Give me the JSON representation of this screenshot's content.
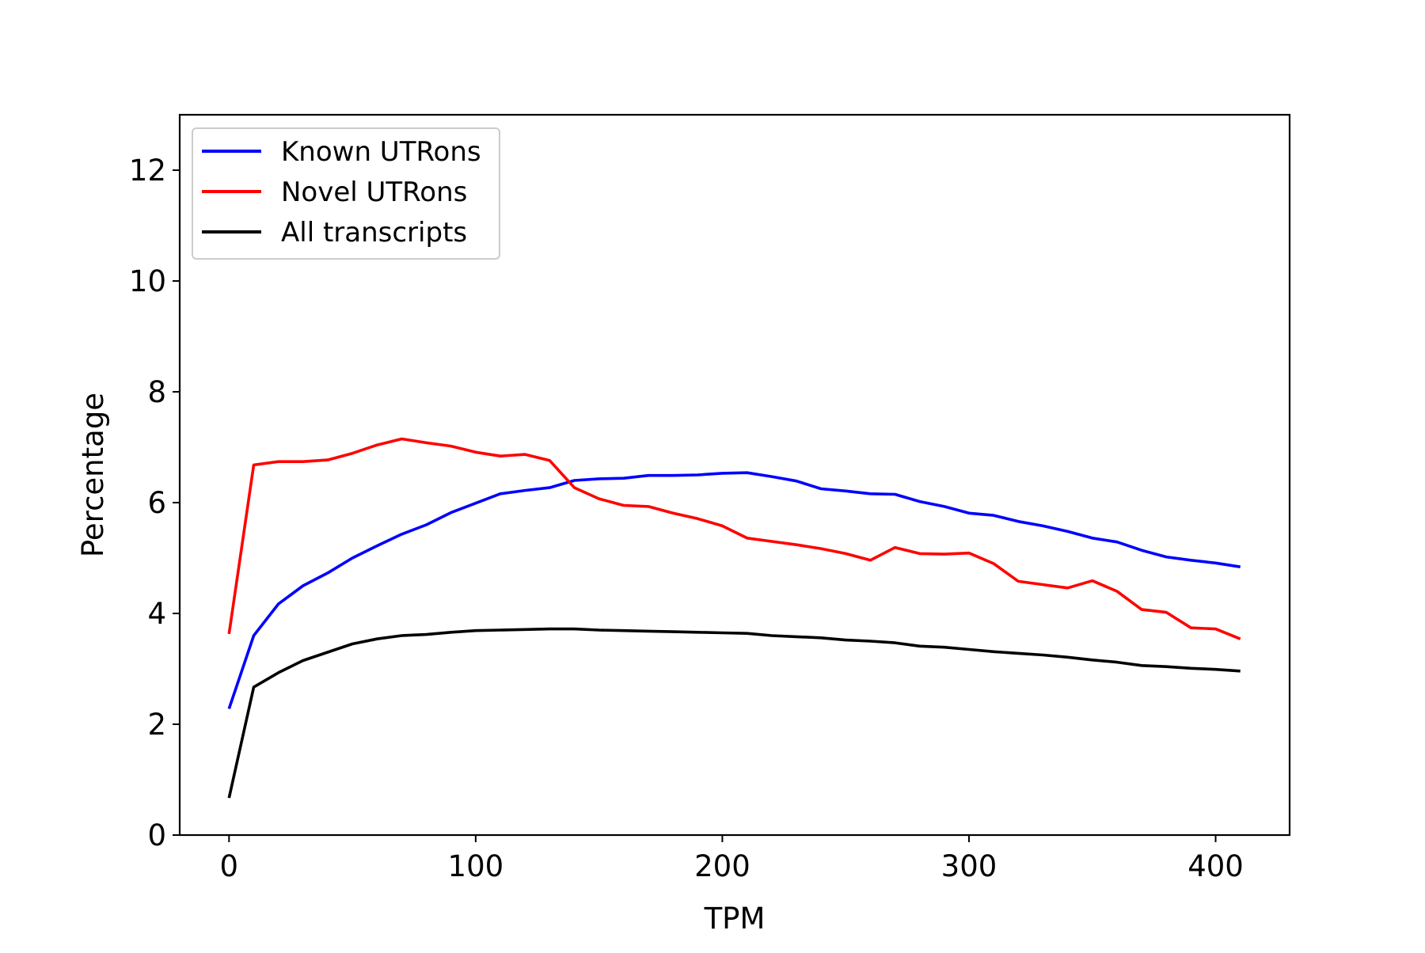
{
  "chart_data": {
    "type": "line",
    "title": "",
    "xlabel": "TPM",
    "ylabel": "Percentage",
    "xlim": [
      -20,
      430
    ],
    "ylim": [
      0,
      13
    ],
    "xticks": [
      0,
      100,
      200,
      300,
      400
    ],
    "yticks": [
      0,
      2,
      4,
      6,
      8,
      10,
      12
    ],
    "xtick_labels": [
      "0",
      "100",
      "200",
      "300",
      "400"
    ],
    "ytick_labels": [
      "0",
      "2",
      "4",
      "6",
      "8",
      "10",
      "12"
    ],
    "grid": false,
    "legend_position": "top-left",
    "x": [
      0,
      10,
      20,
      30,
      40,
      50,
      60,
      70,
      80,
      90,
      100,
      110,
      120,
      130,
      140,
      150,
      160,
      170,
      180,
      190,
      200,
      210,
      220,
      230,
      240,
      250,
      260,
      270,
      280,
      290,
      300,
      310,
      320,
      330,
      340,
      350,
      360,
      370,
      380,
      390,
      400,
      410
    ],
    "series": [
      {
        "name": "Known UTRons",
        "color": "#0000ff",
        "values": [
          2.28,
          3.6,
          4.17,
          4.5,
          4.73,
          5.0,
          5.22,
          5.43,
          5.6,
          5.82,
          5.99,
          6.16,
          6.22,
          6.27,
          6.4,
          6.43,
          6.44,
          6.49,
          6.49,
          6.5,
          6.53,
          6.54,
          6.47,
          6.39,
          6.25,
          6.21,
          6.16,
          6.15,
          6.02,
          5.93,
          5.81,
          5.77,
          5.66,
          5.58,
          5.48,
          5.36,
          5.29,
          5.14,
          5.02,
          4.96,
          4.91,
          4.84
        ]
      },
      {
        "name": "Novel UTRons",
        "color": "#ff0000",
        "values": [
          3.63,
          6.68,
          6.74,
          6.74,
          6.77,
          6.89,
          7.04,
          7.15,
          7.08,
          7.02,
          6.91,
          6.84,
          6.87,
          6.76,
          6.27,
          6.07,
          5.95,
          5.93,
          5.81,
          5.71,
          5.58,
          5.36,
          5.3,
          5.24,
          5.17,
          5.08,
          4.96,
          5.19,
          5.08,
          5.07,
          5.09,
          4.9,
          4.58,
          4.52,
          4.46,
          4.59,
          4.4,
          4.07,
          4.02,
          3.74,
          3.72,
          3.54
        ]
      },
      {
        "name": "All transcripts",
        "color": "#000000",
        "values": [
          0.67,
          2.67,
          2.93,
          3.15,
          3.3,
          3.45,
          3.54,
          3.6,
          3.62,
          3.66,
          3.69,
          3.7,
          3.71,
          3.72,
          3.72,
          3.7,
          3.69,
          3.68,
          3.67,
          3.66,
          3.65,
          3.64,
          3.6,
          3.58,
          3.56,
          3.52,
          3.5,
          3.47,
          3.41,
          3.39,
          3.35,
          3.31,
          3.28,
          3.25,
          3.21,
          3.16,
          3.12,
          3.06,
          3.04,
          3.01,
          2.99,
          2.96
        ]
      }
    ]
  }
}
